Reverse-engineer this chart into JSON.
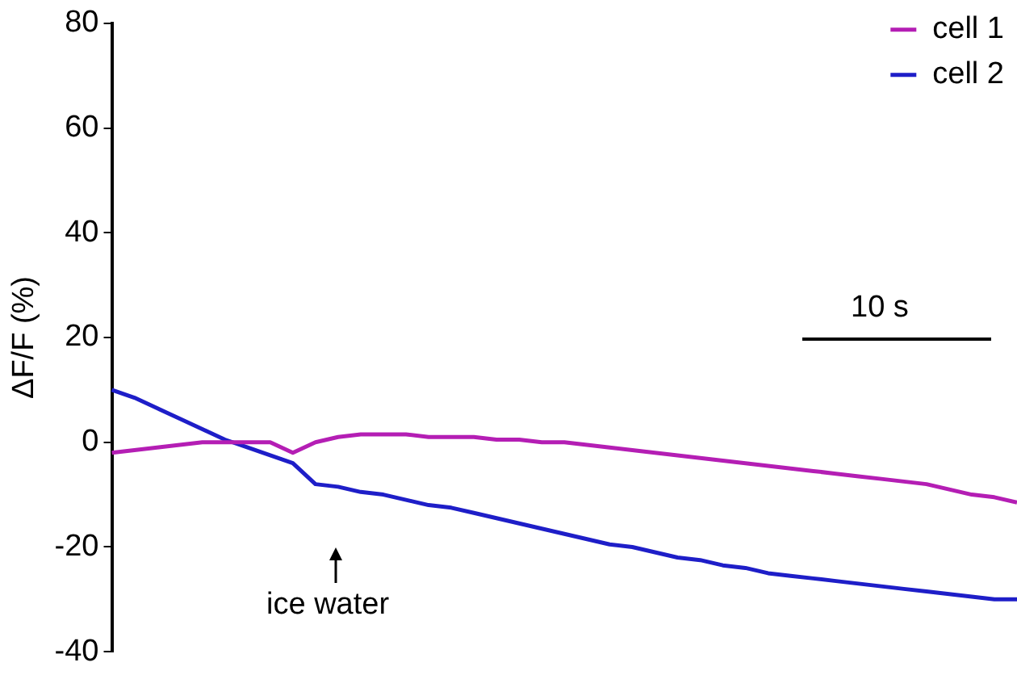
{
  "chart_data": {
    "type": "line",
    "ylabel": "ΔF/F (%)",
    "categories": [
      null,
      null,
      null,
      null,
      null,
      null,
      null,
      null,
      null,
      null,
      null,
      null,
      null,
      null,
      null,
      null,
      null,
      null,
      null,
      null,
      null,
      null,
      null,
      null,
      null,
      null,
      null,
      null,
      null,
      null,
      null,
      null,
      null,
      null,
      null,
      null,
      null,
      null,
      null,
      null,
      null
    ],
    "series": [
      {
        "name": "cell 1",
        "color": "#b41eb4",
        "values": [
          -2,
          -1.5,
          -1,
          -0.5,
          0,
          0,
          0,
          0,
          -2,
          0,
          1,
          1.5,
          1.5,
          1.5,
          1,
          1,
          1,
          0.5,
          0.5,
          0,
          0,
          -0.5,
          -1,
          -1.5,
          -2,
          -2.5,
          -3,
          -3.5,
          -4,
          -4.5,
          -5,
          -5.5,
          -6,
          -6.5,
          -7,
          -7.5,
          -8,
          -9,
          -10,
          -10.5,
          -11.5
        ]
      },
      {
        "name": "cell 2",
        "color": "#1e1ec8",
        "values": [
          10,
          8.5,
          6.5,
          4.5,
          2.5,
          0.5,
          -1,
          -2.5,
          -4,
          -8,
          -8.5,
          -9.5,
          -10,
          -11,
          -12,
          -12.5,
          -13.5,
          -14.5,
          -15.5,
          -16.5,
          -17.5,
          -18.5,
          -19.5,
          -20,
          -21,
          -22,
          -22.5,
          -23.5,
          -24,
          -25,
          -25.5,
          -26,
          -26.5,
          -27,
          -27.5,
          -28,
          -28.5,
          -29,
          -29.5,
          -30,
          -30
        ]
      }
    ],
    "ylim": [
      -40,
      80
    ],
    "yticks": [
      -40,
      -20,
      0,
      20,
      40,
      60,
      80
    ],
    "grid": false,
    "legend": "top right",
    "tick_labels": "y",
    "marker": "none",
    "line_style": "solid",
    "annotations": [
      "10 s",
      "ice water"
    ]
  }
}
